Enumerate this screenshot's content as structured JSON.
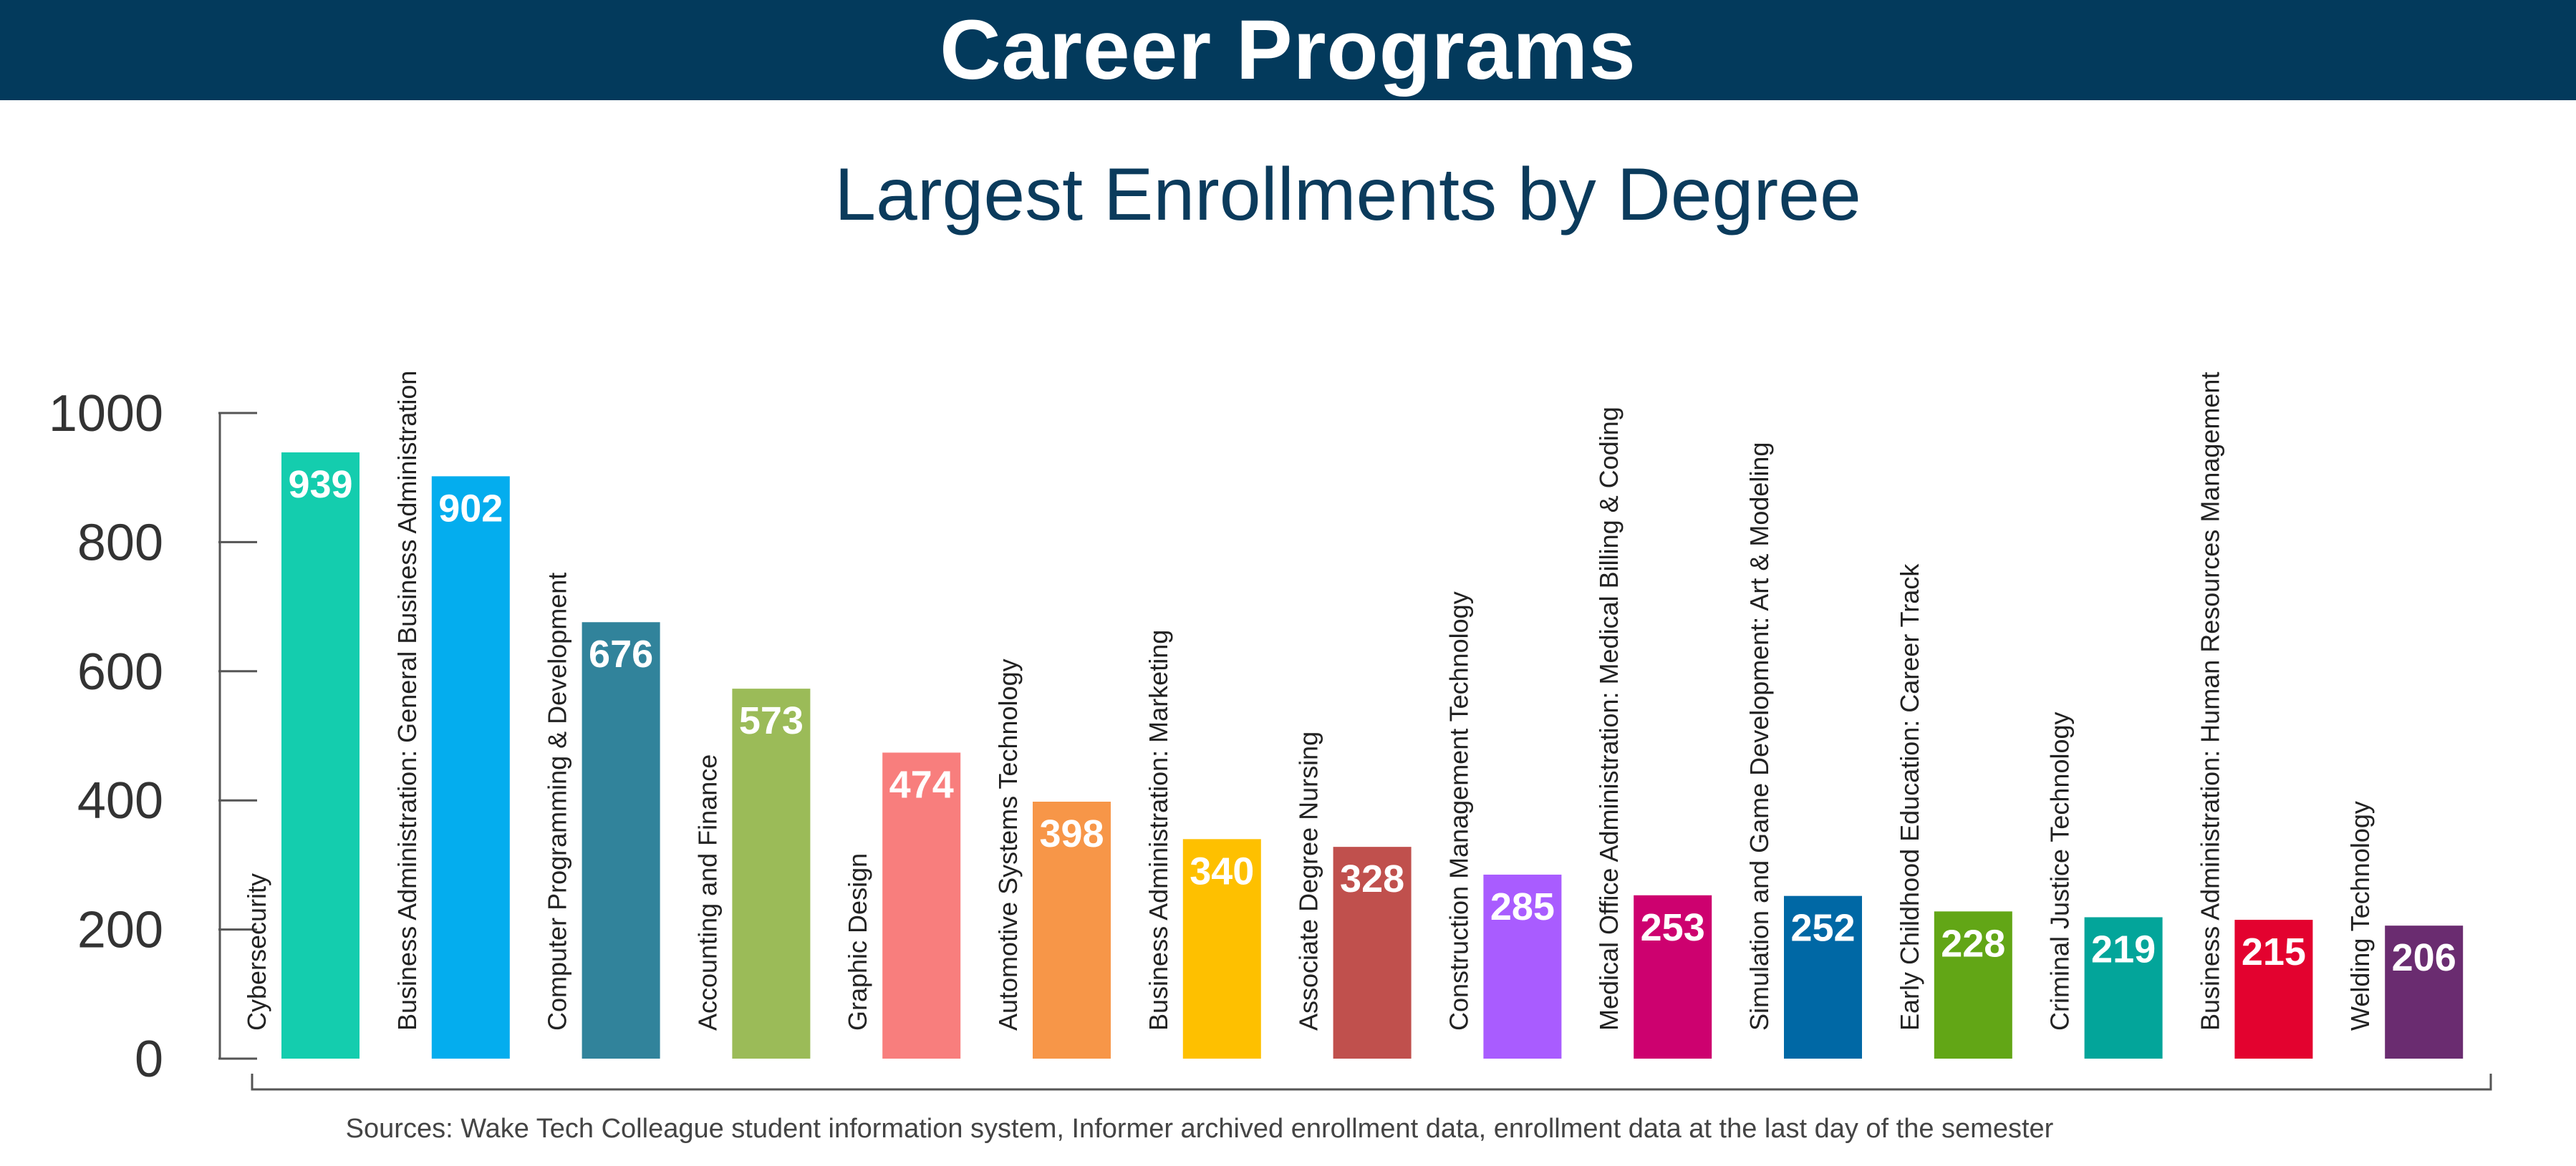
{
  "banner": {
    "title": "Career Programs"
  },
  "source_note": "Sources: Wake Tech Colleague student information system, Informer archived enrollment data, enrollment data at the last day of the semester",
  "chart_data": {
    "type": "bar",
    "title": "Largest Enrollments by Degree",
    "xlabel": "",
    "ylabel": "",
    "ylim": [
      0,
      1000
    ],
    "yticks": [
      0,
      200,
      400,
      600,
      800,
      1000
    ],
    "grid": false,
    "categories": [
      "Cybersecurity",
      "Business Administration: General Business Administration",
      "Computer Programming & Development",
      "Accounting and Finance",
      "Graphic Design",
      "Automotive Systems Technology",
      "Business Administration: Marketing",
      "Associate Degree Nursing",
      "Construction Management Technology",
      "Medical Office Administration: Medical Billing & Coding",
      "Simulation and Game Development: Art &   Modeling",
      "Early Childhood Education: Career Track",
      "Criminal Justice Technology",
      "Business Administration: Human Resources Management",
      "Welding Technology"
    ],
    "values": [
      939,
      902,
      676,
      573,
      474,
      398,
      340,
      328,
      285,
      253,
      252,
      228,
      219,
      215,
      206
    ],
    "colors": [
      "#14cdae",
      "#04adee",
      "#31839b",
      "#9bbb58",
      "#f87e7d",
      "#f79648",
      "#fec000",
      "#c0504d",
      "#a95cff",
      "#cd016f",
      "#0068a5",
      "#62a616",
      "#03a59a",
      "#e3022f",
      "#6a2c70"
    ]
  }
}
